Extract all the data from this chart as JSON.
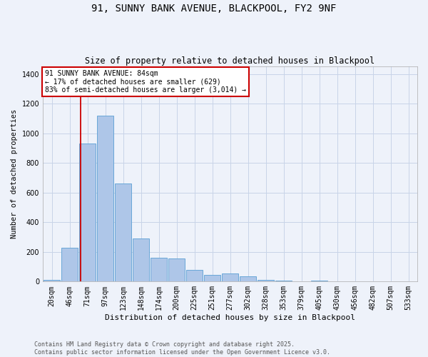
{
  "title": "91, SUNNY BANK AVENUE, BLACKPOOL, FY2 9NF",
  "subtitle": "Size of property relative to detached houses in Blackpool",
  "xlabel": "Distribution of detached houses by size in Blackpool",
  "ylabel": "Number of detached properties",
  "categories": [
    "20sqm",
    "46sqm",
    "71sqm",
    "97sqm",
    "123sqm",
    "148sqm",
    "174sqm",
    "200sqm",
    "225sqm",
    "251sqm",
    "277sqm",
    "302sqm",
    "328sqm",
    "353sqm",
    "379sqm",
    "405sqm",
    "430sqm",
    "456sqm",
    "482sqm",
    "507sqm",
    "533sqm"
  ],
  "values": [
    10,
    230,
    930,
    1120,
    660,
    290,
    160,
    155,
    80,
    45,
    55,
    35,
    13,
    8,
    3,
    5,
    3,
    1,
    1,
    1,
    1
  ],
  "bar_color": "#aec6e8",
  "bar_edge_color": "#5a9fd4",
  "grid_color": "#c8d4e8",
  "background_color": "#eef2fa",
  "vline_color": "#cc0000",
  "vline_xindex": 1.62,
  "annotation_text": "91 SUNNY BANK AVENUE: 84sqm\n← 17% of detached houses are smaller (629)\n83% of semi-detached houses are larger (3,014) →",
  "annotation_box_color": "#ffffff",
  "annotation_box_edge": "#cc0000",
  "footer": "Contains HM Land Registry data © Crown copyright and database right 2025.\nContains public sector information licensed under the Open Government Licence v3.0.",
  "ylim": [
    0,
    1450
  ],
  "yticks": [
    0,
    200,
    400,
    600,
    800,
    1000,
    1200,
    1400
  ],
  "title_fontsize": 10,
  "subtitle_fontsize": 8.5,
  "xlabel_fontsize": 8,
  "ylabel_fontsize": 7.5,
  "tick_fontsize": 7,
  "annotation_fontsize": 7,
  "footer_fontsize": 6
}
